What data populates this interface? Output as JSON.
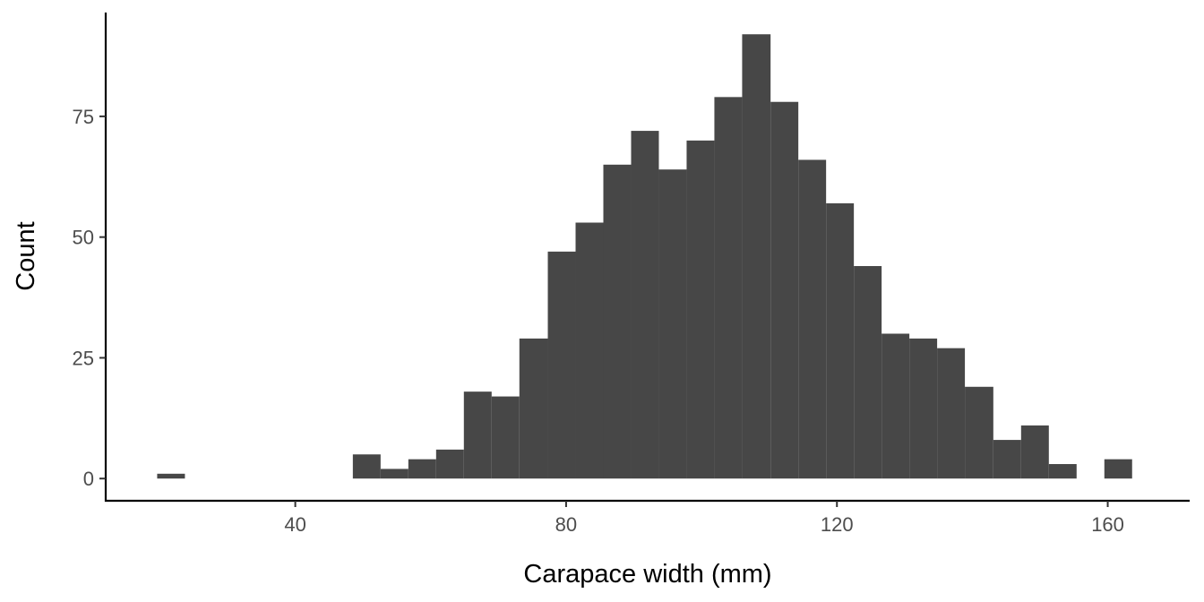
{
  "chart_data": {
    "type": "bar",
    "subtype": "histogram",
    "title": "",
    "xlabel": "Carapace width (mm)",
    "ylabel": "Count",
    "bin_width": 4.1,
    "x_ticks": [
      40,
      80,
      120,
      160
    ],
    "x_tick_labels": [
      "40",
      "80",
      "120",
      "160"
    ],
    "y_ticks": [
      0,
      25,
      50,
      75
    ],
    "y_tick_labels": [
      "0",
      "25",
      "50",
      "75"
    ],
    "xlim": [
      12.0,
      172.1
    ],
    "ylim": [
      -4.6,
      96.5
    ],
    "grid": false,
    "legend": "none",
    "bar_color": "#474747",
    "bins": [
      {
        "x0": 19.6,
        "x1": 23.7,
        "count": 1
      },
      {
        "x0": 48.5,
        "x1": 52.6,
        "count": 5
      },
      {
        "x0": 52.6,
        "x1": 56.7,
        "count": 2
      },
      {
        "x0": 56.7,
        "x1": 60.8,
        "count": 4
      },
      {
        "x0": 60.8,
        "x1": 64.9,
        "count": 6
      },
      {
        "x0": 64.9,
        "x1": 69.0,
        "count": 18
      },
      {
        "x0": 69.0,
        "x1": 73.1,
        "count": 17
      },
      {
        "x0": 73.1,
        "x1": 77.3,
        "count": 29
      },
      {
        "x0": 77.3,
        "x1": 81.4,
        "count": 47
      },
      {
        "x0": 81.4,
        "x1": 85.5,
        "count": 53
      },
      {
        "x0": 85.5,
        "x1": 89.6,
        "count": 65
      },
      {
        "x0": 89.6,
        "x1": 93.7,
        "count": 72
      },
      {
        "x0": 93.7,
        "x1": 97.8,
        "count": 64
      },
      {
        "x0": 97.8,
        "x1": 101.9,
        "count": 70
      },
      {
        "x0": 101.9,
        "x1": 106.0,
        "count": 79
      },
      {
        "x0": 106.0,
        "x1": 110.2,
        "count": 92
      },
      {
        "x0": 110.2,
        "x1": 114.3,
        "count": 78
      },
      {
        "x0": 114.3,
        "x1": 118.4,
        "count": 66
      },
      {
        "x0": 118.4,
        "x1": 122.5,
        "count": 57
      },
      {
        "x0": 122.5,
        "x1": 126.6,
        "count": 44
      },
      {
        "x0": 126.6,
        "x1": 130.7,
        "count": 30
      },
      {
        "x0": 130.7,
        "x1": 134.8,
        "count": 29
      },
      {
        "x0": 134.8,
        "x1": 138.9,
        "count": 27
      },
      {
        "x0": 138.9,
        "x1": 143.1,
        "count": 19
      },
      {
        "x0": 143.1,
        "x1": 147.2,
        "count": 8
      },
      {
        "x0": 147.2,
        "x1": 151.3,
        "count": 11
      },
      {
        "x0": 151.3,
        "x1": 155.4,
        "count": 3
      },
      {
        "x0": 159.5,
        "x1": 163.6,
        "count": 4
      }
    ]
  }
}
